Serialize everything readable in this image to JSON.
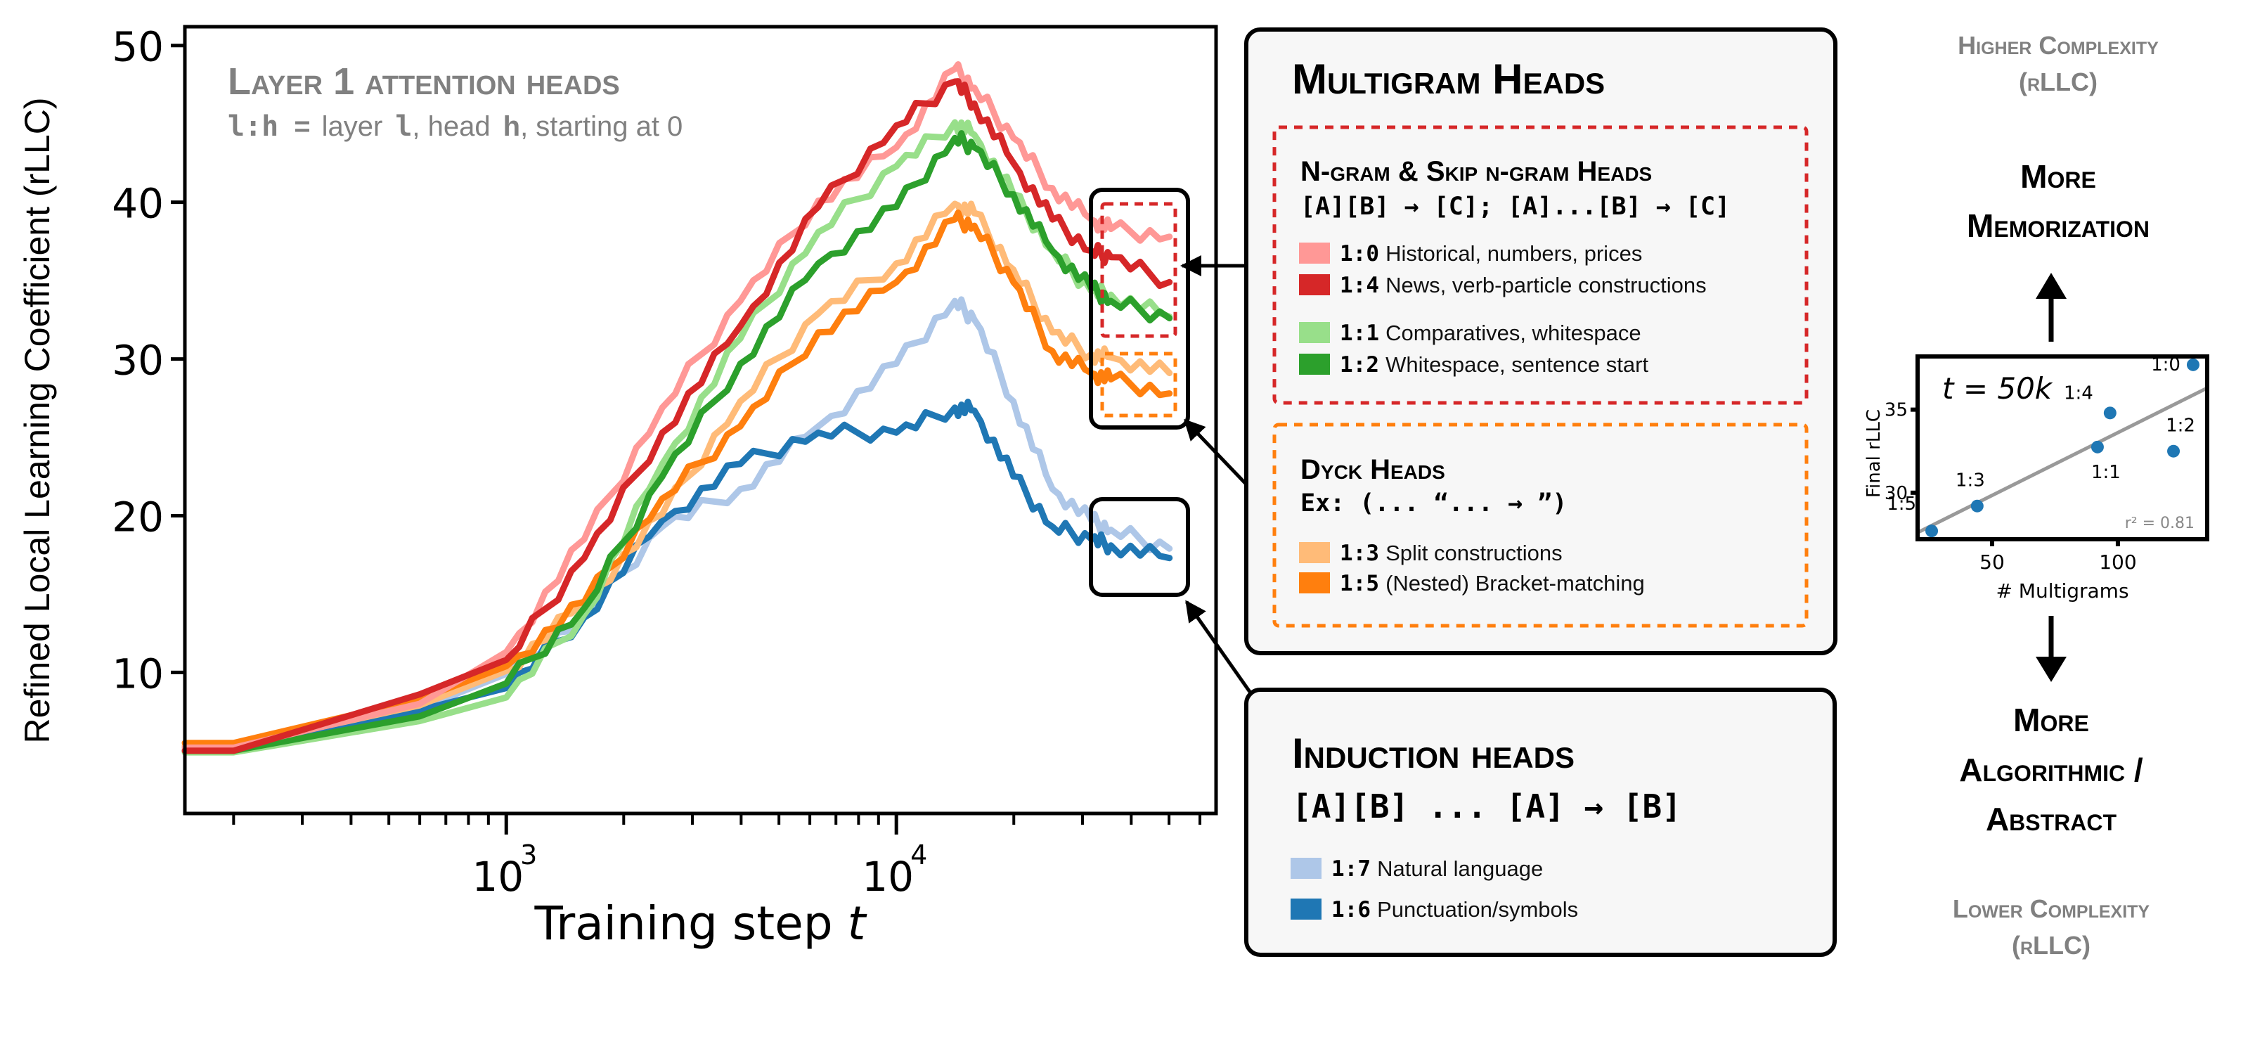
{
  "main_plot": {
    "title": "Layer 1 attention heads",
    "subtitle_code": "l:h",
    "subtitle_eq": "=",
    "subtitle_text_1": "layer",
    "subtitle_code_l": "l",
    "subtitle_text_2": ", head",
    "subtitle_code_h": "h",
    "subtitle_text_3": ", starting at 0"
  },
  "multigram_panel": {
    "title": "Multigram Heads",
    "ngram_group": {
      "title": "N-gram & Skip n-gram Heads",
      "pattern": "[A][B] → [C]; [A]...[B] → [C]",
      "items": [
        {
          "code": "1:0",
          "label": "Historical, numbers, prices",
          "color": "#ff9896"
        },
        {
          "code": "1:4",
          "label": "News, verb-particle constructions",
          "color": "#d62728"
        },
        {
          "code": "1:1",
          "label": "Comparatives, whitespace",
          "color": "#98df8a"
        },
        {
          "code": "1:2",
          "label": "Whitespace, sentence start",
          "color": "#2ca02c"
        }
      ],
      "border_color": "#d62728"
    },
    "dyck_group": {
      "title": "Dyck Heads",
      "pattern": "Ex: (... “... → ”)",
      "items": [
        {
          "code": "1:3",
          "label": "Split constructions",
          "color": "#ffbb78"
        },
        {
          "code": "1:5",
          "label": "(Nested) Bracket-matching",
          "color": "#ff7f0e"
        }
      ],
      "border_color": "#ff7f0e"
    }
  },
  "induction_panel": {
    "title": "Induction heads",
    "pattern": "[A][B] ... [A] → [B]",
    "items": [
      {
        "code": "1:7",
        "label": "Natural language",
        "color": "#aec7e8"
      },
      {
        "code": "1:6",
        "label": "Punctuation/symbols",
        "color": "#1f77b4"
      }
    ]
  },
  "right_panel": {
    "higher_line1": "Higher Complexity",
    "higher_line2": "(rLLC)",
    "more_mem_line1": "More",
    "more_mem_line2": "Memorization",
    "more_alg_line1": "More",
    "more_alg_line2": "Algorithmic /",
    "more_alg_line3": "Abstract",
    "lower_line1": "Lower Complexity",
    "lower_line2": "(rLLC)"
  },
  "chart_data": [
    {
      "type": "line",
      "title": "Layer 1 attention heads",
      "xlabel": "Training step t",
      "ylabel": "Refined Local Learning Coefficient (rLLC)",
      "xscale": "log",
      "xlim": [
        150,
        66000
      ],
      "ylim": [
        1,
        51.2
      ],
      "yticks": [
        10,
        20,
        30,
        40,
        50
      ],
      "xticks": [
        1000,
        10000
      ],
      "xtick_labels": [
        "10",
        "10"
      ],
      "xtick_exponents": [
        "3",
        "4"
      ],
      "grid": false,
      "x": [
        150,
        200,
        600,
        1000,
        1585,
        2512,
        3981,
        6310,
        10000,
        14125,
        15849,
        19953,
        25119,
        31623,
        35481,
        50119
      ],
      "series": [
        {
          "name": "1:0",
          "color": "#ff9896",
          "values": [
            5.2,
            5.2,
            8.0,
            11.3,
            18.5,
            26.9,
            33.7,
            40.1,
            43.5,
            48.5,
            47.3,
            44.1,
            40.9,
            38.9,
            38.3,
            37.8
          ]
        },
        {
          "name": "1:4",
          "color": "#d62728",
          "values": [
            5.0,
            5.0,
            8.6,
            10.8,
            17.3,
            25.3,
            32.1,
            39.7,
            44.9,
            47.7,
            46.3,
            42.5,
            38.9,
            36.9,
            36.5,
            34.9
          ]
        },
        {
          "name": "1:1",
          "color": "#98df8a",
          "values": [
            4.9,
            4.9,
            6.9,
            8.4,
            13.7,
            23.3,
            31.3,
            38.1,
            42.3,
            45.1,
            44.3,
            40.5,
            36.9,
            34.3,
            34.1,
            32.7
          ]
        },
        {
          "name": "1:2",
          "color": "#2ca02c",
          "values": [
            5.0,
            5.0,
            7.2,
            9.3,
            14.1,
            22.5,
            29.7,
            36.1,
            39.7,
            44.1,
            43.5,
            40.5,
            36.9,
            34.5,
            33.7,
            32.6
          ]
        },
        {
          "name": "1:3",
          "color": "#ffbb78",
          "values": [
            5.3,
            5.3,
            7.9,
            10.1,
            14.5,
            20.1,
            27.3,
            32.9,
            36.1,
            39.9,
            39.3,
            35.7,
            31.7,
            30.3,
            30.1,
            29.1
          ]
        },
        {
          "name": "1:5",
          "color": "#ff7f0e",
          "values": [
            5.5,
            5.5,
            8.3,
            10.4,
            14.5,
            21.1,
            25.7,
            31.7,
            34.9,
            38.9,
            38.5,
            34.9,
            30.5,
            29.1,
            28.7,
            27.8
          ]
        },
        {
          "name": "1:7",
          "color": "#aec7e8",
          "values": [
            5.0,
            5.0,
            7.7,
            9.9,
            13.5,
            19.3,
            21.7,
            25.7,
            29.7,
            33.7,
            32.5,
            27.3,
            21.7,
            19.7,
            19.1,
            17.9
          ]
        },
        {
          "name": "1:6",
          "color": "#1f77b4",
          "values": [
            5.0,
            5.0,
            7.6,
            9.0,
            13.5,
            19.7,
            23.3,
            25.3,
            25.3,
            26.9,
            26.7,
            22.5,
            19.3,
            18.5,
            18.1,
            17.3
          ]
        }
      ]
    },
    {
      "type": "scatter",
      "title": "t = 50k",
      "xlabel": "# Multigrams",
      "ylabel": "Final  rLLC",
      "xlim": [
        20.4,
        135.5
      ],
      "ylim": [
        27.2,
        38.2
      ],
      "xticks": [
        50,
        100
      ],
      "yticks": [
        30,
        35
      ],
      "grid": false,
      "annotation": "r² = 0.81",
      "points": [
        {
          "label": "1:5",
          "x": 26.0,
          "y": 27.7
        },
        {
          "label": "1:3",
          "x": 44.1,
          "y": 29.2
        },
        {
          "label": "1:1",
          "x": 91.9,
          "y": 32.75
        },
        {
          "label": "1:4",
          "x": 96.9,
          "y": 34.8
        },
        {
          "label": "1:2",
          "x": 122.1,
          "y": 32.5
        },
        {
          "label": "1:0",
          "x": 129.9,
          "y": 37.7
        }
      ],
      "fit_line": {
        "x": [
          20.4,
          135.5
        ],
        "y": [
          27.6,
          36.3
        ],
        "color": "#999999"
      },
      "point_color": "#1f77b4"
    }
  ]
}
